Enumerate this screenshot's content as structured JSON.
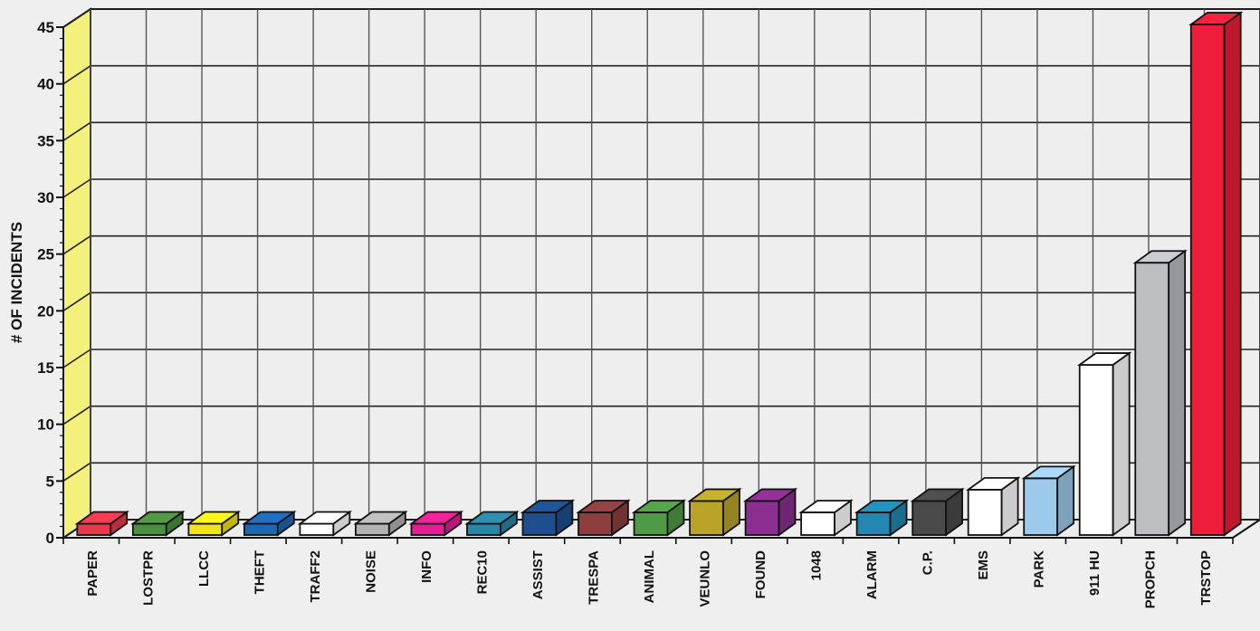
{
  "chart_data": {
    "type": "bar",
    "title": "",
    "xlabel": "",
    "ylabel": "# OF INCIDENTS",
    "ylim": [
      0,
      45
    ],
    "yticks": [
      0,
      5,
      10,
      15,
      20,
      25,
      30,
      35,
      40,
      45
    ],
    "grid": true,
    "legend": "none",
    "style": "3d-column",
    "categories": [
      "PAPER",
      "LOSTPR",
      "LLCC",
      "THEFT",
      "TRAFF2",
      "NOISE",
      "INFO",
      "REC10",
      "ASSIST",
      "TRESPA",
      "ANIMAL",
      "VEUNLO",
      "FOUND",
      "1048",
      "ALARM",
      "C.P.",
      "EMS",
      "PARK",
      "911 HU",
      "PROPCH",
      "TRSTOP"
    ],
    "values": [
      1,
      1,
      1,
      1,
      1,
      1,
      1,
      1,
      2,
      2,
      2,
      3,
      3,
      2,
      2,
      3,
      4,
      5,
      15,
      24,
      45
    ],
    "colors": [
      "#e8384f",
      "#4c8f3e",
      "#f0e41a",
      "#1f67b5",
      "#ffffff",
      "#b3b3b3",
      "#e51e93",
      "#2b86a6",
      "#1d4f8f",
      "#8c3e3e",
      "#4f9a44",
      "#b9a428",
      "#8a2e8f",
      "#ffffff",
      "#2387b1",
      "#4a4a4a",
      "#ffffff",
      "#9dcaea",
      "#ffffff",
      "#bcbec2",
      "#ee1e3a"
    ],
    "wall_color": "#f4f07c"
  }
}
